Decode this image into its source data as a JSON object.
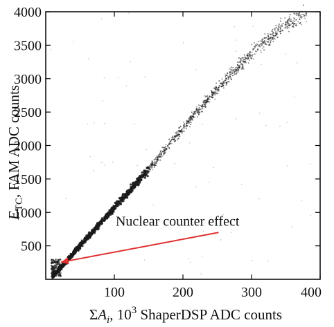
{
  "chart_data": {
    "type": "scatter",
    "title": "",
    "xlabel": "ΣA_i, 10^3 ShaperDSP ADC counts",
    "xlabel_parts": {
      "sigma": "Σ",
      "var": "A",
      "sub": "i",
      "mid": ", 10",
      "sup": "3",
      "rest": " ShaperDSP ADC counts"
    },
    "ylabel": "E_TC, FAM ADC counts",
    "ylabel_parts": {
      "var": "E",
      "sub": "TC",
      "rest": ", FAM ADC counts"
    },
    "xlim": [
      0,
      400
    ],
    "ylim": [
      0,
      4000
    ],
    "x_ticks": [
      100,
      200,
      300,
      400
    ],
    "y_ticks": [
      500,
      1000,
      1500,
      2000,
      2500,
      3000,
      3500,
      4000
    ],
    "grid": false,
    "legend": false,
    "series": [
      {
        "trend_points": [
          {
            "x": 10,
            "y": 50
          },
          {
            "x": 20,
            "y": 150
          },
          {
            "x": 50,
            "y": 500
          },
          {
            "x": 100,
            "y": 1070
          },
          {
            "x": 150,
            "y": 1640
          },
          {
            "x": 200,
            "y": 2260
          },
          {
            "x": 250,
            "y": 2850
          },
          {
            "x": 300,
            "y": 3380
          },
          {
            "x": 350,
            "y": 3800
          },
          {
            "x": 380,
            "y": 3980
          }
        ],
        "color": "#1a1a1a"
      }
    ],
    "annotations": [
      {
        "text": "Nuclear counter effect",
        "text_at": {
          "x": 102,
          "y": 800
        },
        "arrow_from": {
          "x": 252,
          "y": 700
        },
        "arrow_to": {
          "x": 22,
          "y": 255
        },
        "color": "#e03030"
      }
    ]
  }
}
